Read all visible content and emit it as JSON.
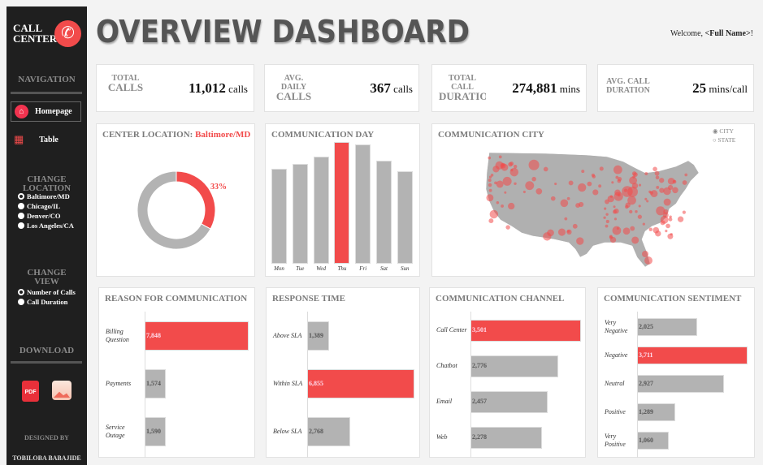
{
  "sidebar": {
    "logo_line1": "CALL",
    "logo_line2": "CENTER",
    "navigation_title": "NAVIGATION",
    "nav": [
      {
        "label": "Homepage",
        "icon": "home-icon"
      },
      {
        "label": "Table",
        "icon": "table-icon"
      }
    ],
    "location_title_1": "CHANGE",
    "location_title_2": "LOCATION",
    "locations": [
      {
        "label": "Baltimore/MD",
        "selected": true
      },
      {
        "label": "Chicago/IL",
        "selected": false
      },
      {
        "label": "Denver/CO",
        "selected": false
      },
      {
        "label": "Los Angeles/CA",
        "selected": false
      }
    ],
    "view_title_1": "CHANGE",
    "view_title_2": "VIEW",
    "views": [
      {
        "label": "Number of Calls",
        "selected": true
      },
      {
        "label": "Call Duration",
        "selected": false
      }
    ],
    "download_title": "DOWNLOAD",
    "pdf_label": "PDF",
    "designed_by": "DESIGNED BY",
    "designer": "TOBILOBA BABAJIDE"
  },
  "header": {
    "title": "OVERVIEW DASHBOARD",
    "welcome": "Welcome, ",
    "user": "<Full Name>",
    "welcome_end": "!"
  },
  "kpis": [
    {
      "label": [
        "TOTAL",
        "CALLS"
      ],
      "value": "11,012",
      "unit": "calls"
    },
    {
      "label": [
        "AVG.",
        "DAILY",
        "CALLS"
      ],
      "value": "367",
      "unit": "calls"
    },
    {
      "label": [
        "TOTAL",
        "CALL",
        "DURATION"
      ],
      "value": "274,881",
      "unit": "mins"
    },
    {
      "label": [
        "AVG. CALL",
        "DURATION"
      ],
      "value": "25",
      "unit": "mins/call"
    }
  ],
  "location_card": {
    "title": "CENTER LOCATION: ",
    "location": "Baltimore/MD",
    "percent_label": "33%"
  },
  "city_card": {
    "title": "COMMUNICATION CITY",
    "options": [
      {
        "label": "CITY",
        "selected": true
      },
      {
        "label": "STATE",
        "selected": false
      }
    ]
  },
  "colors": {
    "accent": "#f24b4b",
    "bar": "#b3b3b3",
    "sidebar": "#1f1f1f"
  },
  "chart_data": [
    {
      "type": "pie",
      "title": "CENTER LOCATION: Baltimore/MD",
      "slices": [
        {
          "label": "Baltimore/MD",
          "value": 33,
          "color": "#f24b4b"
        },
        {
          "label": "Other",
          "value": 67,
          "color": "#b3b3b3"
        }
      ],
      "data_labels": [
        "33%"
      ]
    },
    {
      "type": "bar",
      "title": "COMMUNICATION DAY",
      "categories": [
        "Mon",
        "Tue",
        "Wed",
        "Thu",
        "Fri",
        "Sat",
        "Sun"
      ],
      "relative_values": [
        0.78,
        0.82,
        0.88,
        1.0,
        0.98,
        0.85,
        0.76
      ],
      "highlight": "Thu"
    },
    {
      "type": "bar",
      "orientation": "horizontal",
      "title": "REASON FOR COMMUNICATION",
      "categories": [
        "Billing Question",
        "Payments",
        "Service Outage"
      ],
      "values": [
        7848,
        1574,
        1590
      ],
      "labels": [
        "7,848",
        "1,574",
        "1,590"
      ],
      "highlight": 0
    },
    {
      "type": "bar",
      "orientation": "horizontal",
      "title": "RESPONSE TIME",
      "categories": [
        "Above SLA",
        "Within SLA",
        "Below SLA"
      ],
      "values": [
        1389,
        6855,
        2768
      ],
      "labels": [
        "1,389",
        "6,855",
        "2,768"
      ],
      "highlight": 1
    },
    {
      "type": "bar",
      "orientation": "horizontal",
      "title": "COMMUNICATION CHANNEL",
      "categories": [
        "Call Center",
        "Chatbot",
        "Email",
        "Web"
      ],
      "values": [
        3501,
        2776,
        2457,
        2278
      ],
      "labels": [
        "3,501",
        "2,776",
        "2,457",
        "2,278"
      ],
      "highlight": 0
    },
    {
      "type": "bar",
      "orientation": "horizontal",
      "title": "COMMUNICATION SENTIMENT",
      "categories": [
        "Very Negative",
        "Negative",
        "Neutral",
        "Positive",
        "Very Positive"
      ],
      "values": [
        2025,
        3711,
        2927,
        1289,
        1060
      ],
      "labels": [
        "2,025",
        "3,711",
        "2,927",
        "1,289",
        "1,060"
      ],
      "highlight": 1
    }
  ]
}
